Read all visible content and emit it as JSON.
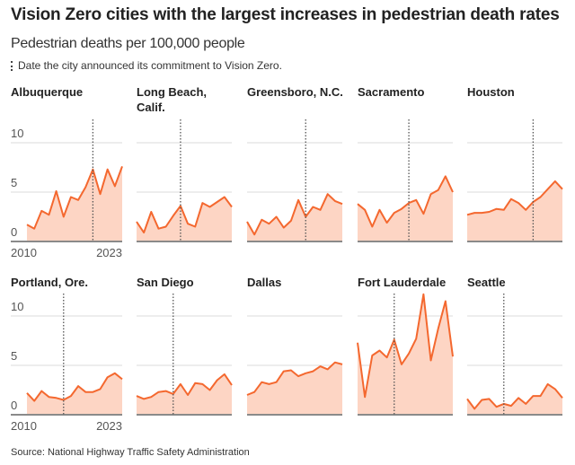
{
  "title": "Vision Zero cities with the largest increases in pedestrian death rates",
  "subtitle": "Pedestrian deaths per 100,000 people",
  "legend": "Date the city announced its commitment to Vision Zero.",
  "source": "Source: National Highway Traffic Safety Administration",
  "colors": {
    "line": "#f4682f",
    "fill": "#fdd5c4",
    "grid": "#e2e2e2",
    "baseline": "#8a8a8a",
    "vision_zero_marker": "#555555"
  },
  "chart_data": {
    "type": "area",
    "small_multiples": true,
    "x": [
      2010,
      2011,
      2012,
      2013,
      2014,
      2015,
      2016,
      2017,
      2018,
      2019,
      2020,
      2021,
      2022,
      2023
    ],
    "x_tick_labels": [
      "2010",
      "2023"
    ],
    "ylim": [
      0,
      12.3
    ],
    "y_ticks": [
      0,
      5,
      10
    ],
    "y_tick_labels": [
      "0",
      "5",
      "10"
    ],
    "grid": true,
    "panels": [
      {
        "city": [
          "Albuquerque"
        ],
        "vision_zero_year": 2019,
        "values": [
          1.7,
          1.3,
          3.1,
          2.7,
          5.1,
          2.5,
          4.5,
          4.2,
          5.5,
          7.3,
          4.8,
          7.3,
          5.6,
          7.6
        ]
      },
      {
        "city": [
          "Long Beach,",
          "Calif."
        ],
        "vision_zero_year": 2016,
        "values": [
          2.0,
          0.9,
          3.0,
          1.3,
          1.5,
          2.6,
          3.6,
          1.8,
          1.5,
          3.9,
          3.5,
          4.0,
          4.5,
          3.5
        ]
      },
      {
        "city": [
          "Greensboro, N.C."
        ],
        "vision_zero_year": 2018,
        "values": [
          2.0,
          0.7,
          2.2,
          1.8,
          2.5,
          1.4,
          2.1,
          4.2,
          2.5,
          3.5,
          3.2,
          4.8,
          4.1,
          3.8
        ]
      },
      {
        "city": [
          "Sacramento"
        ],
        "vision_zero_year": 2017,
        "values": [
          3.8,
          3.2,
          1.5,
          3.2,
          1.9,
          2.9,
          3.3,
          3.9,
          4.2,
          2.8,
          4.8,
          5.2,
          6.6,
          5.0
        ]
      },
      {
        "city": [
          "Houston"
        ],
        "vision_zero_year": 2019,
        "values": [
          2.7,
          2.9,
          2.9,
          3.0,
          3.3,
          3.2,
          4.3,
          3.9,
          3.2,
          4.0,
          4.5,
          5.3,
          6.1,
          5.3
        ]
      },
      {
        "city": [
          "Portland, Ore."
        ],
        "vision_zero_year": 2015,
        "values": [
          2.2,
          1.4,
          2.4,
          1.8,
          1.7,
          1.5,
          1.9,
          2.9,
          2.3,
          2.3,
          2.6,
          3.8,
          4.2,
          3.6
        ]
      },
      {
        "city": [
          "San Diego"
        ],
        "vision_zero_year": 2015,
        "values": [
          1.9,
          1.6,
          1.8,
          2.3,
          2.4,
          2.1,
          3.1,
          2.0,
          3.2,
          3.1,
          2.5,
          3.5,
          4.1,
          3.0
        ]
      },
      {
        "city": [
          "Dallas"
        ],
        "vision_zero_year": null,
        "values": [
          2.0,
          2.3,
          3.3,
          3.1,
          3.3,
          4.4,
          4.5,
          3.9,
          4.2,
          4.4,
          4.9,
          4.6,
          5.3,
          5.1
        ]
      },
      {
        "city": [
          "Fort Lauderdale"
        ],
        "vision_zero_year": 2015,
        "values": [
          7.3,
          1.8,
          6.0,
          6.5,
          5.8,
          7.6,
          5.1,
          6.2,
          7.7,
          12.2,
          5.5,
          8.7,
          11.5,
          5.9
        ]
      },
      {
        "city": [
          "Seattle"
        ],
        "vision_zero_year": 2015,
        "values": [
          1.6,
          0.6,
          1.5,
          1.6,
          0.8,
          1.1,
          0.9,
          1.7,
          1.1,
          1.9,
          1.9,
          3.1,
          2.6,
          1.7
        ]
      }
    ]
  }
}
